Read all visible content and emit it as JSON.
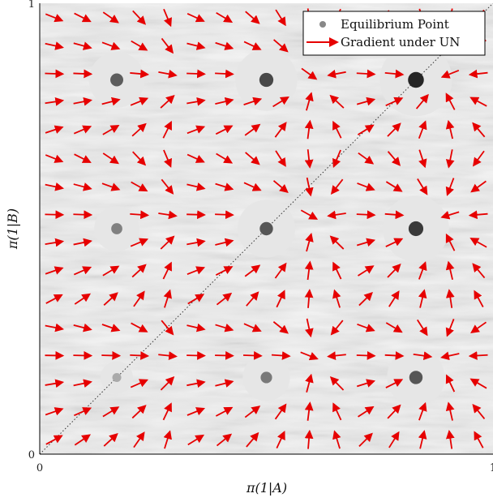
{
  "chart_data": {
    "type": "vector-field",
    "xlabel": "π(1|A)",
    "ylabel": "π(1|B)",
    "xlim": [
      0,
      1
    ],
    "ylim": [
      0,
      1
    ],
    "x_ticks": [
      "0",
      "1"
    ],
    "y_ticks": [
      "0",
      "1"
    ],
    "legend": {
      "position": "top-right",
      "entries": [
        {
          "label": "Equilibrium Point",
          "marker": "dot",
          "color": "#888888"
        },
        {
          "label": "Gradient under UN",
          "marker": "arrow",
          "color": "#e60000"
        }
      ]
    },
    "diagonal": {
      "from": [
        0,
        0
      ],
      "to": [
        1,
        1
      ],
      "style": "dotted"
    },
    "equilibrium_points": [
      {
        "x": 0.17,
        "y": 0.83,
        "strength": 0.55
      },
      {
        "x": 0.5,
        "y": 0.83,
        "strength": 0.7
      },
      {
        "x": 0.83,
        "y": 0.83,
        "strength": 0.95
      },
      {
        "x": 0.17,
        "y": 0.5,
        "strength": 0.3
      },
      {
        "x": 0.5,
        "y": 0.5,
        "strength": 0.6
      },
      {
        "x": 0.83,
        "y": 0.5,
        "strength": 0.8
      },
      {
        "x": 0.17,
        "y": 0.17,
        "strength": 0.0
      },
      {
        "x": 0.5,
        "y": 0.17,
        "strength": 0.35
      },
      {
        "x": 0.83,
        "y": 0.17,
        "strength": 0.6
      }
    ],
    "colors": {
      "arrow": "#e60000",
      "halo": "#e6e6e6",
      "background": "#d8d8d8"
    }
  }
}
